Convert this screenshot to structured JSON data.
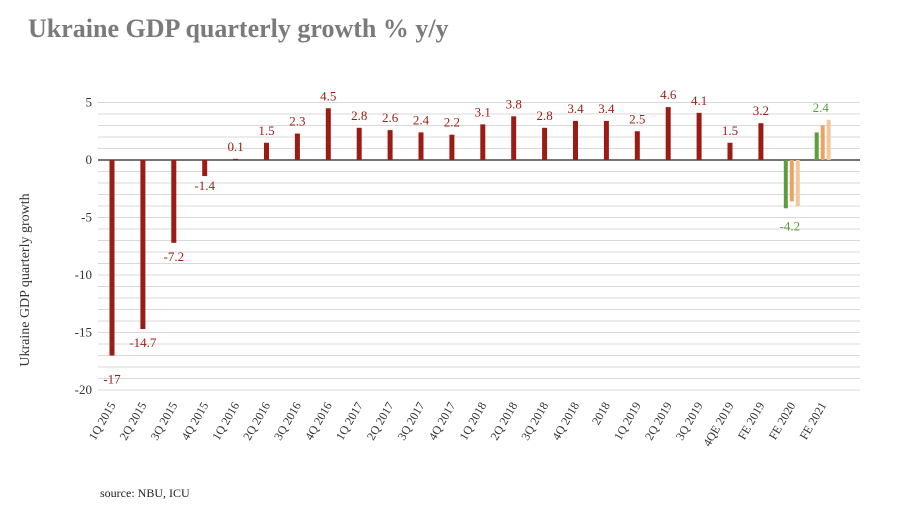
{
  "title": "Ukraine GDP quarterly growth % y/y",
  "source": "source: NBU, ICU",
  "chart_data": {
    "type": "bar",
    "title": "Ukraine GDP quarterly growth % y/y",
    "ylabel": "Ukraine GDP quarterly growth",
    "xlabel": "",
    "ylim": [
      -20,
      5
    ],
    "yticks": [
      5,
      0,
      -5,
      -10,
      -15,
      -20
    ],
    "grid": true,
    "categories": [
      "1Q 2015",
      "2Q 2015",
      "3Q 2015",
      "4Q 2015",
      "1Q 2016",
      "2Q 2016",
      "3Q 2016",
      "4Q 2016",
      "1Q 2017",
      "2Q 2017",
      "3Q 2017",
      "4Q 2017",
      "1Q 2018",
      "2Q 2018",
      "3Q 2018",
      "4Q 2018",
      "2018",
      "1Q 2019",
      "2Q 2019",
      "3Q 2019",
      "4QE 2019",
      "FE 2019",
      "FE 2020",
      "FE 2021"
    ],
    "values": [
      -17,
      -14.7,
      -7.2,
      -1.4,
      0.1,
      1.5,
      2.3,
      4.5,
      2.8,
      2.6,
      2.4,
      2.2,
      3.1,
      3.8,
      2.8,
      3.4,
      3.4,
      2.5,
      4.6,
      4.1,
      1.5,
      3.2,
      null,
      null
    ],
    "labels": [
      "-17",
      "-14.7",
      "-7.2",
      "-1.4",
      "0.1",
      "1.5",
      "2.3",
      "4.5",
      "2.8",
      "2.6",
      "2.4",
      "2.2",
      "3.1",
      "3.8",
      "2.8",
      "3.4",
      "3.4",
      "2.5",
      "4.6",
      "4.1",
      "1.5",
      "3.2",
      "-4.2",
      "2.4"
    ],
    "forecast_groups": [
      {
        "category": "FE 2020",
        "values": [
          -4.2,
          -3.6,
          -4.0
        ],
        "colors": [
          "#5a9e3f",
          "#e8a460",
          "#f4c79a"
        ],
        "label": "-4.2"
      },
      {
        "category": "FE 2021",
        "values": [
          2.4,
          3.0,
          3.5
        ],
        "colors": [
          "#5a9e3f",
          "#e8a460",
          "#f4c79a"
        ],
        "label": "2.4"
      }
    ],
    "colors": {
      "main": "#9b1c14",
      "highlight": "#5a9e3f",
      "axis": "#222222",
      "grid": "#d9d9d9"
    }
  }
}
